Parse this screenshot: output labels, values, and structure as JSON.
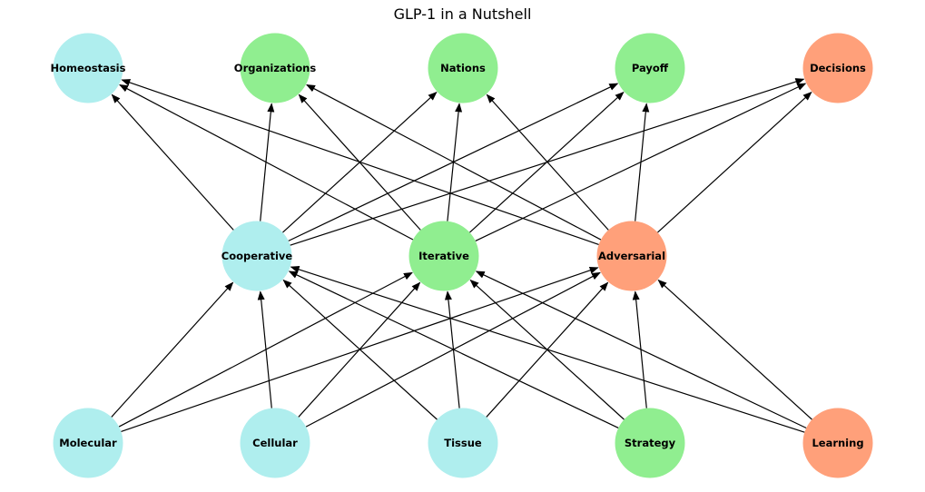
{
  "title": "GLP-1 in a Nutshell",
  "colors": {
    "cyan": "#afeeee",
    "green": "#90ee90",
    "orange": "#ffa07a",
    "edge": "#000000"
  },
  "nodes": [
    {
      "id": "Homeostasis",
      "label": "Homeostasis",
      "color": "cyan"
    },
    {
      "id": "Organizations",
      "label": "Organizations",
      "color": "green"
    },
    {
      "id": "Nations",
      "label": "Nations",
      "color": "green"
    },
    {
      "id": "Payoff",
      "label": "Payoff",
      "color": "green"
    },
    {
      "id": "Decisions",
      "label": "Decisions",
      "color": "orange"
    },
    {
      "id": "Cooperative",
      "label": "Cooperative",
      "color": "cyan"
    },
    {
      "id": "Iterative",
      "label": "Iterative",
      "color": "green"
    },
    {
      "id": "Adversarial",
      "label": "Adversarial",
      "color": "orange"
    },
    {
      "id": "Molecular",
      "label": "Molecular",
      "color": "cyan"
    },
    {
      "id": "Cellular",
      "label": "Cellular",
      "color": "cyan"
    },
    {
      "id": "Tissue",
      "label": "Tissue",
      "color": "cyan"
    },
    {
      "id": "Strategy",
      "label": "Strategy",
      "color": "green"
    },
    {
      "id": "Learning",
      "label": "Learning",
      "color": "orange"
    }
  ],
  "edges": [
    [
      "Molecular",
      "Cooperative"
    ],
    [
      "Molecular",
      "Iterative"
    ],
    [
      "Molecular",
      "Adversarial"
    ],
    [
      "Cellular",
      "Cooperative"
    ],
    [
      "Cellular",
      "Iterative"
    ],
    [
      "Cellular",
      "Adversarial"
    ],
    [
      "Tissue",
      "Cooperative"
    ],
    [
      "Tissue",
      "Iterative"
    ],
    [
      "Tissue",
      "Adversarial"
    ],
    [
      "Strategy",
      "Cooperative"
    ],
    [
      "Strategy",
      "Iterative"
    ],
    [
      "Strategy",
      "Adversarial"
    ],
    [
      "Learning",
      "Cooperative"
    ],
    [
      "Learning",
      "Iterative"
    ],
    [
      "Learning",
      "Adversarial"
    ],
    [
      "Cooperative",
      "Homeostasis"
    ],
    [
      "Cooperative",
      "Organizations"
    ],
    [
      "Cooperative",
      "Nations"
    ],
    [
      "Cooperative",
      "Payoff"
    ],
    [
      "Cooperative",
      "Decisions"
    ],
    [
      "Iterative",
      "Homeostasis"
    ],
    [
      "Iterative",
      "Organizations"
    ],
    [
      "Iterative",
      "Nations"
    ],
    [
      "Iterative",
      "Payoff"
    ],
    [
      "Iterative",
      "Decisions"
    ],
    [
      "Adversarial",
      "Homeostasis"
    ],
    [
      "Adversarial",
      "Organizations"
    ],
    [
      "Adversarial",
      "Nations"
    ],
    [
      "Adversarial",
      "Payoff"
    ],
    [
      "Adversarial",
      "Decisions"
    ]
  ]
}
